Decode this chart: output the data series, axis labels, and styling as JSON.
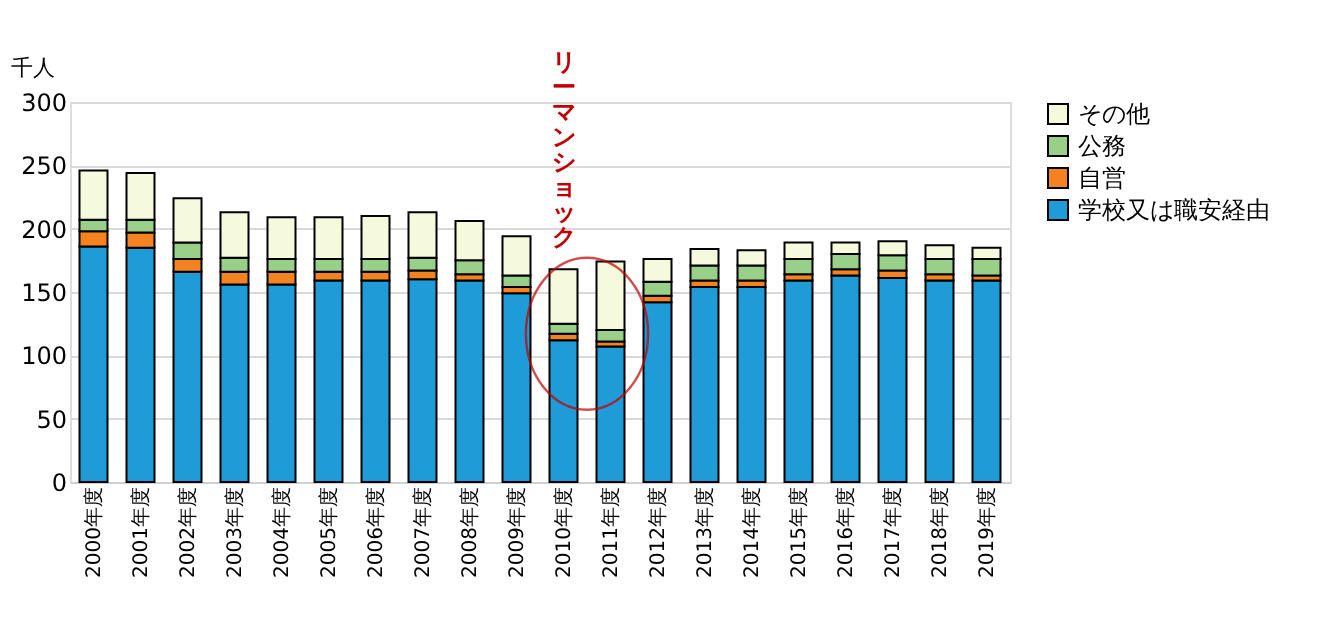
{
  "chart_data": {
    "type": "bar",
    "stacked": true,
    "ylabel": "千人",
    "categories": [
      "2000年度",
      "2001年度",
      "2002年度",
      "2003年度",
      "2004年度",
      "2005年度",
      "2006年度",
      "2007年度",
      "2008年度",
      "2009年度",
      "2010年度",
      "2011年度",
      "2012年度",
      "2013年度",
      "2014年度",
      "2015年度",
      "2016年度",
      "2017年度",
      "2018年度",
      "2019年度"
    ],
    "series": [
      {
        "name": "学校又は職安経由",
        "color": "#1f9bd7",
        "values": [
          186,
          185,
          166,
          156,
          156,
          159,
          159,
          160,
          159,
          149,
          112,
          107,
          142,
          154,
          154,
          159,
          163,
          161,
          159,
          159
        ]
      },
      {
        "name": "自営",
        "color": "#f58220",
        "values": [
          12,
          12,
          10,
          10,
          10,
          7,
          7,
          7,
          5,
          5,
          5,
          4,
          5,
          5,
          5,
          5,
          5,
          6,
          5,
          4
        ]
      },
      {
        "name": "公務",
        "color": "#98d08a",
        "values": [
          9,
          10,
          13,
          11,
          10,
          10,
          10,
          10,
          11,
          9,
          8,
          9,
          11,
          12,
          12,
          12,
          12,
          12,
          12,
          13
        ]
      },
      {
        "name": "その他",
        "color": "#f5fadc",
        "values": [
          39,
          37,
          35,
          36,
          33,
          33,
          34,
          36,
          31,
          31,
          43,
          54,
          18,
          13,
          12,
          13,
          9,
          11,
          11,
          9
        ]
      }
    ],
    "ylim": [
      0,
      300
    ],
    "yticks": [
      0,
      50,
      100,
      150,
      200,
      250,
      300
    ],
    "grid": "y",
    "legend": "right",
    "annotations": [
      "リーマンショック"
    ]
  }
}
